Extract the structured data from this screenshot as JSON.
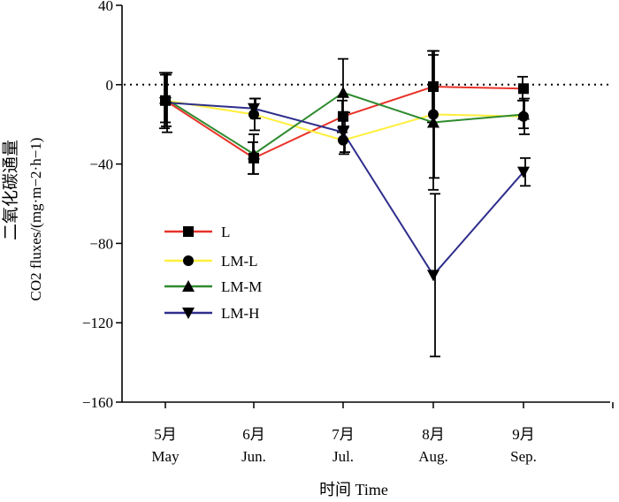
{
  "chart_data": {
    "type": "line",
    "title": "",
    "xlabel": "时间 Time",
    "ylabel_cn": "二氧化碳通量",
    "ylabel_en": "CO2 fluxes/(mg·m−2·h−1)",
    "ylim": [
      -160,
      40
    ],
    "yticks": [
      40,
      0,
      -40,
      -80,
      -120,
      -160
    ],
    "ytick_labels": [
      "40",
      "0",
      "−40",
      "−80",
      "−120",
      "−160"
    ],
    "categories_cn": [
      "5月",
      "6月",
      "7月",
      "8月",
      "9月"
    ],
    "categories_en": [
      "May",
      "Jun.",
      "Jul.",
      "Aug.",
      "Sep."
    ],
    "reference_line": 0,
    "series": [
      {
        "name": "L",
        "color": "#e8332a",
        "marker": "square",
        "values": [
          -8,
          -37,
          -16,
          -1,
          -2
        ],
        "errors": [
          14,
          8,
          8,
          18,
          6
        ]
      },
      {
        "name": "LM-L",
        "color": "#ffef3a",
        "marker": "circle",
        "values": [
          -8,
          -15,
          -28,
          -15,
          -16
        ],
        "errors": [
          13,
          8,
          7,
          32,
          9
        ]
      },
      {
        "name": "LM-M",
        "color": "#2f8b2f",
        "marker": "triangle-up",
        "values": [
          -7,
          -35,
          -4,
          -19,
          -15
        ],
        "errors": [
          12,
          10,
          17,
          34,
          7
        ]
      },
      {
        "name": "LM-H",
        "color": "#2e2e8c",
        "marker": "triangle-down",
        "values": [
          -9,
          -12,
          -24,
          -96,
          -44
        ],
        "errors": [
          15,
          5,
          10,
          41,
          7
        ]
      }
    ]
  }
}
